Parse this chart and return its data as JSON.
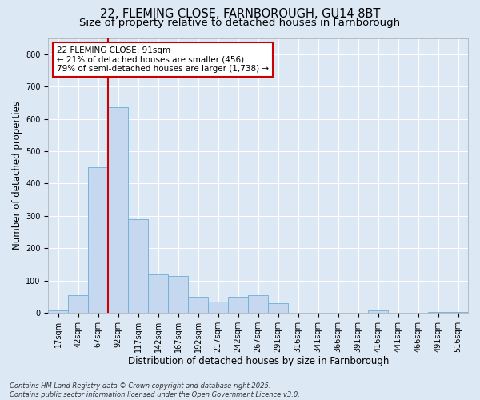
{
  "title_line1": "22, FLEMING CLOSE, FARNBOROUGH, GU14 8BT",
  "title_line2": "Size of property relative to detached houses in Farnborough",
  "xlabel": "Distribution of detached houses by size in Farnborough",
  "ylabel": "Number of detached properties",
  "annotation_title": "22 FLEMING CLOSE: 91sqm",
  "annotation_line2": "← 21% of detached houses are smaller (456)",
  "annotation_line3": "79% of semi-detached houses are larger (1,738) →",
  "footer_line1": "Contains HM Land Registry data © Crown copyright and database right 2025.",
  "footer_line2": "Contains public sector information licensed under the Open Government Licence v3.0.",
  "bin_labels": [
    "17sqm",
    "42sqm",
    "67sqm",
    "92sqm",
    "117sqm",
    "142sqm",
    "167sqm",
    "192sqm",
    "217sqm",
    "242sqm",
    "267sqm",
    "291sqm",
    "316sqm",
    "341sqm",
    "366sqm",
    "391sqm",
    "416sqm",
    "441sqm",
    "466sqm",
    "491sqm",
    "516sqm"
  ],
  "bar_values": [
    8,
    55,
    450,
    635,
    290,
    120,
    115,
    50,
    35,
    50,
    55,
    30,
    0,
    0,
    0,
    0,
    8,
    0,
    0,
    3,
    2
  ],
  "bar_color": "#c5d8f0",
  "bar_edge_color": "#6baed6",
  "vline_color": "#cc0000",
  "annotation_box_color": "#cc0000",
  "background_color": "#dde8f5",
  "plot_bg_color": "#dde8f5",
  "ylim": [
    0,
    850
  ],
  "yticks": [
    0,
    100,
    200,
    300,
    400,
    500,
    600,
    700,
    800
  ],
  "grid_color": "#ffffff",
  "title_fontsize": 10.5,
  "subtitle_fontsize": 9.5,
  "axis_label_fontsize": 8.5,
  "tick_fontsize": 7,
  "annotation_fontsize": 7.5,
  "footer_fontsize": 6
}
